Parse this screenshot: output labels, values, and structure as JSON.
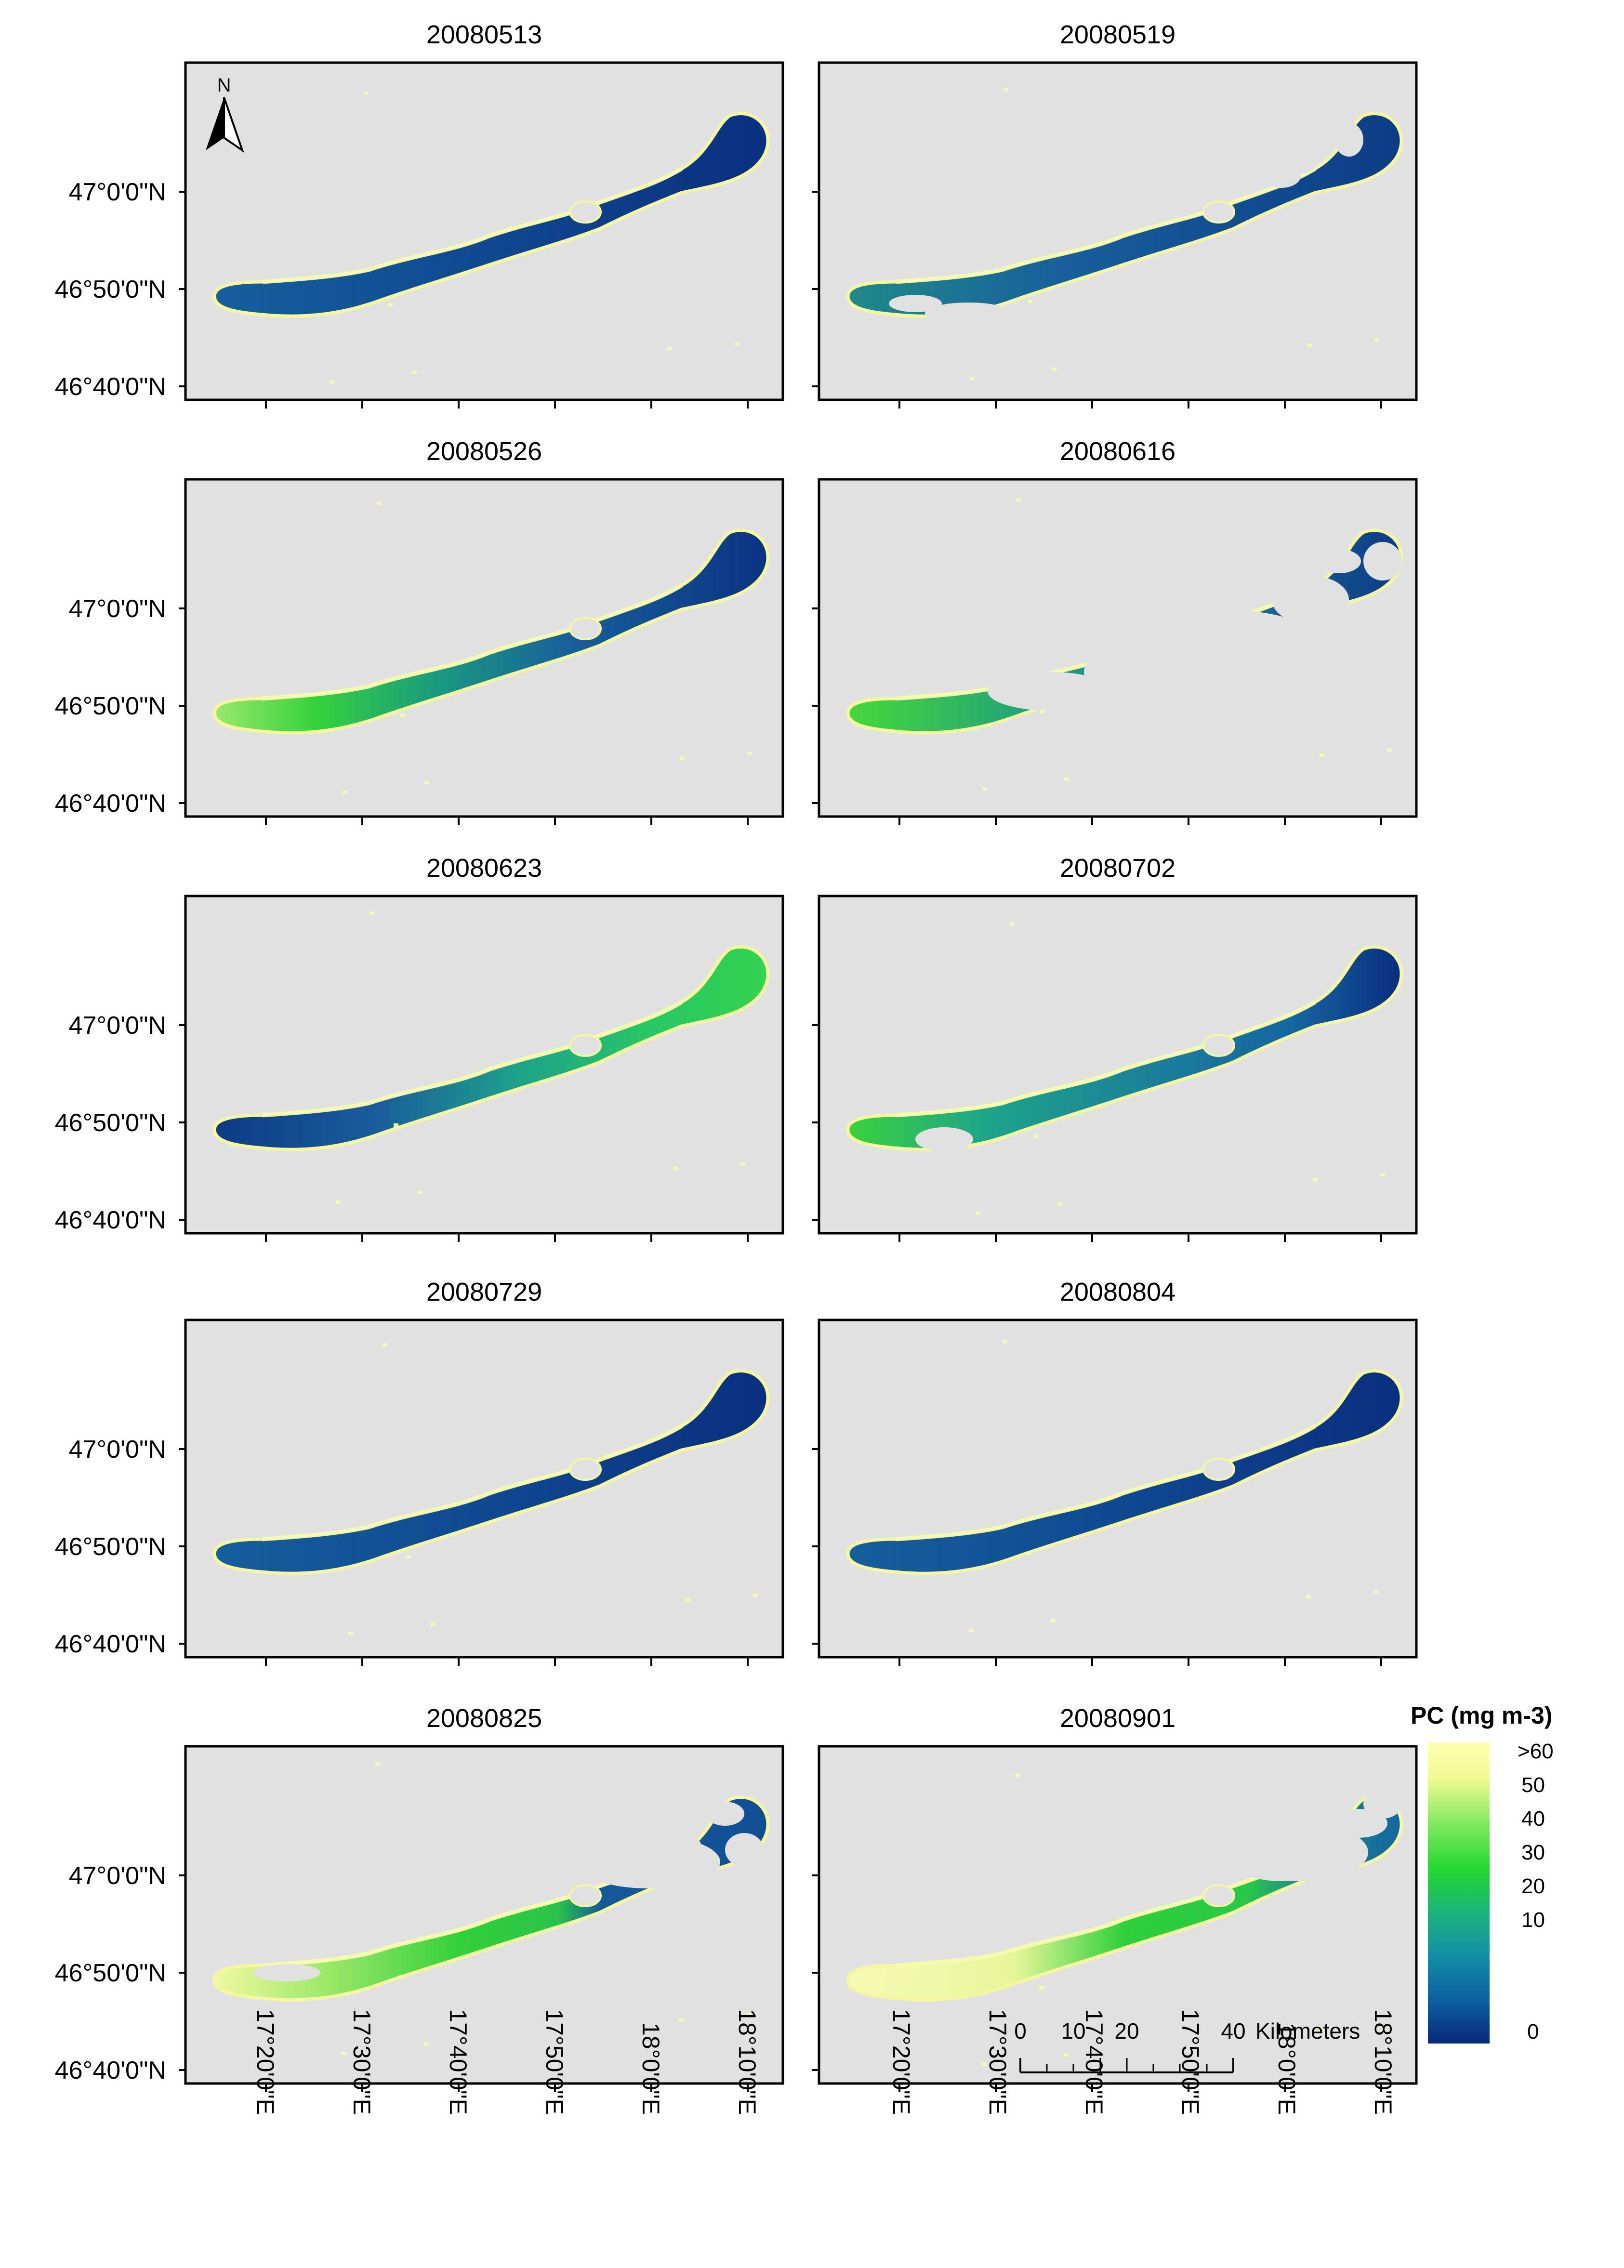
{
  "figure": {
    "panels": [
      {
        "date": "20080513",
        "pattern": "dark"
      },
      {
        "date": "20080519",
        "pattern": "dark-clouds"
      },
      {
        "date": "20080526",
        "pattern": "green-west"
      },
      {
        "date": "20080616",
        "pattern": "cloud-gaps"
      },
      {
        "date": "20080623",
        "pattern": "green-east"
      },
      {
        "date": "20080702",
        "pattern": "mixed"
      },
      {
        "date": "20080729",
        "pattern": "dark"
      },
      {
        "date": "20080804",
        "pattern": "dark"
      },
      {
        "date": "20080825",
        "pattern": "bloom-partial"
      },
      {
        "date": "20080901",
        "pattern": "bloom"
      }
    ],
    "lat_labels": [
      "47°0'0\"N",
      "46°50'0\"N",
      "46°40'0\"N"
    ],
    "lon_labels": [
      "17°20'0\"E",
      "17°30'0\"E",
      "17°40'0\"E",
      "17°50'0\"E",
      "18°0'0\"E",
      "18°10'0\"E"
    ],
    "north_arrow": {
      "label": "N"
    },
    "legend": {
      "title": "PC (mg m-3)",
      "ticks": [
        ">60",
        "50",
        "40",
        "30",
        "20",
        "10",
        "0"
      ],
      "colors": [
        "#ffffb2",
        "#f4fa96",
        "#a8ef6a",
        "#28e028",
        "#22c456",
        "#1aa88c",
        "#118aa8",
        "#0c64a2",
        "#083884"
      ]
    },
    "scale_bar": {
      "ticks": [
        "0",
        "10",
        "20",
        "40"
      ],
      "unit": "Kilometers"
    },
    "colors": {
      "map_background": "#e1e1e1",
      "frame": "#000000",
      "shore": "#f5f7a0",
      "dark": "#0f3c86",
      "mid_blue": "#19679e",
      "teal": "#1a9488",
      "green": "#2ed23a",
      "yellow": "#f4fab0"
    }
  }
}
